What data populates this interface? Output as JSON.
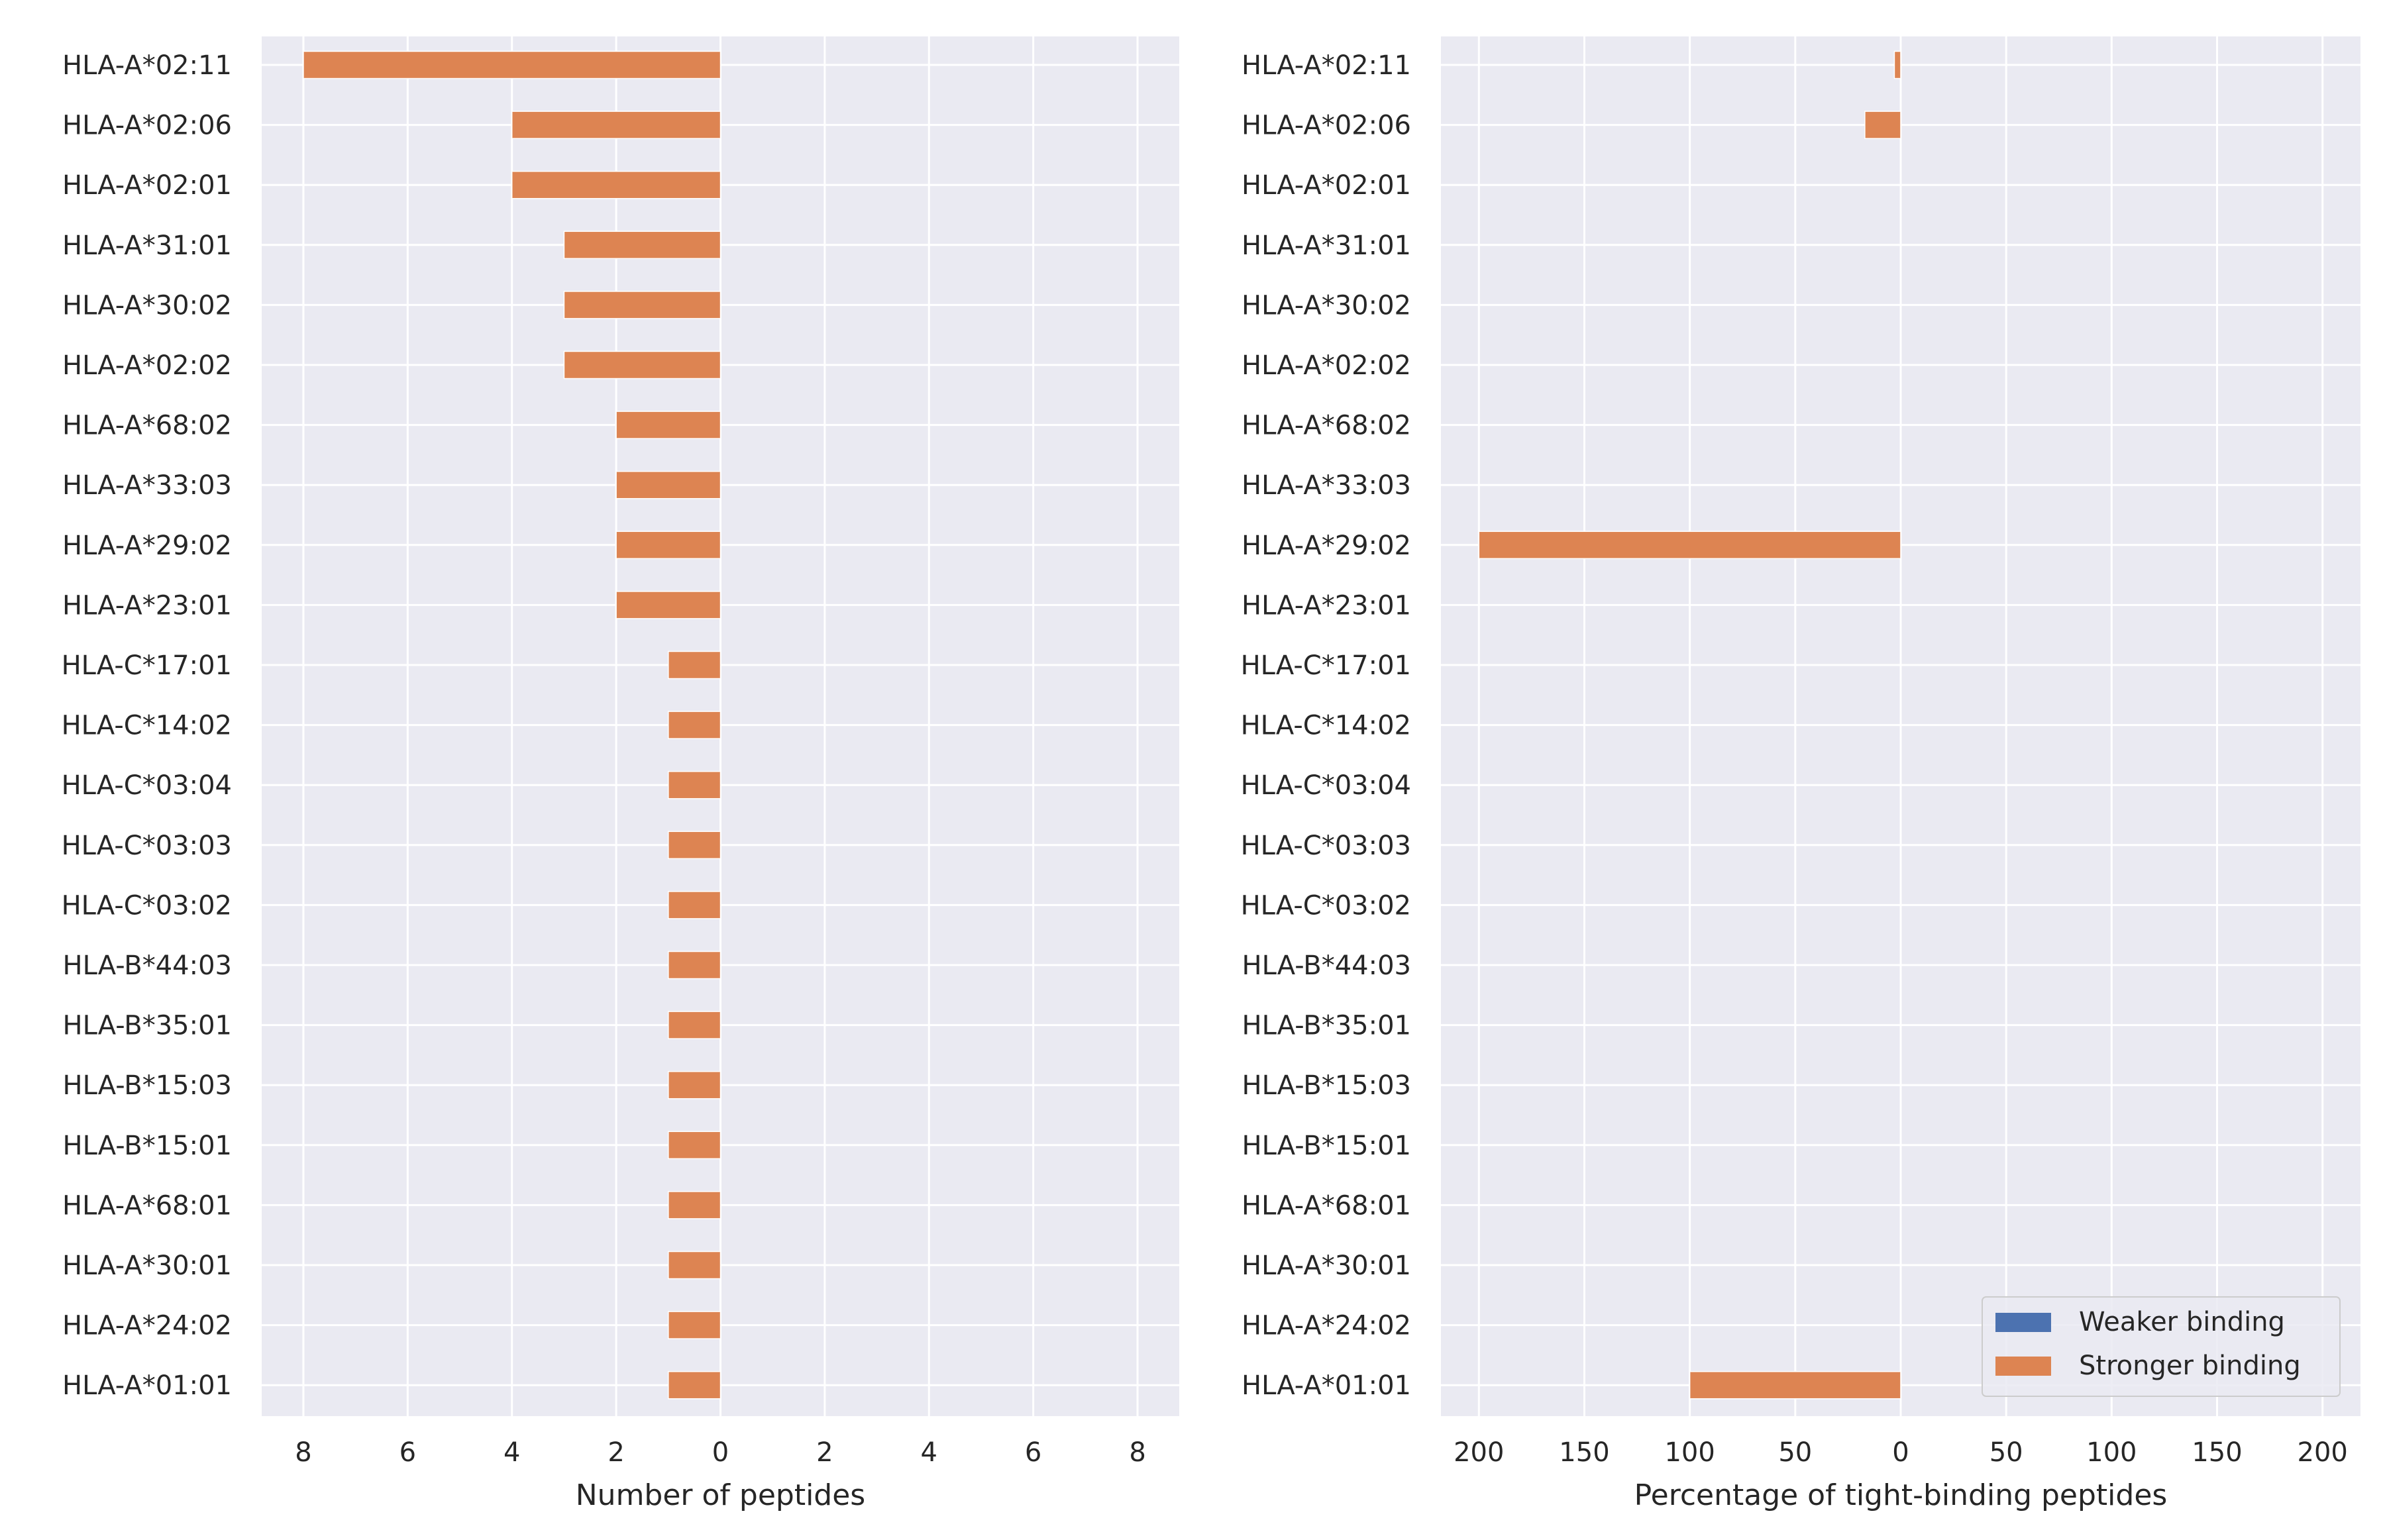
{
  "colors": {
    "weaker": "#4c72b0",
    "stronger": "#dd8452",
    "background": "#eaeaf2",
    "grid": "#ffffff",
    "text": "#262626"
  },
  "chart_data": [
    {
      "type": "bar",
      "orientation": "horizontal",
      "xlabel": "Number of peptides",
      "x_axis_direction": "diverging from 0 (left side reversed)",
      "xlim": [
        -8.8,
        8.8
      ],
      "xticks": [
        -8,
        -6,
        -4,
        -2,
        0,
        2,
        4,
        6,
        8
      ],
      "xtick_labels": [
        "8",
        "6",
        "4",
        "2",
        "0",
        "2",
        "4",
        "6",
        "8"
      ],
      "categories": [
        "HLA-A*02:11",
        "HLA-A*02:06",
        "HLA-A*02:01",
        "HLA-A*31:01",
        "HLA-A*30:02",
        "HLA-A*02:02",
        "HLA-A*68:02",
        "HLA-A*33:03",
        "HLA-A*29:02",
        "HLA-A*23:01",
        "HLA-C*17:01",
        "HLA-C*14:02",
        "HLA-C*03:04",
        "HLA-C*03:03",
        "HLA-C*03:02",
        "HLA-B*44:03",
        "HLA-B*35:01",
        "HLA-B*15:03",
        "HLA-B*15:01",
        "HLA-A*68:01",
        "HLA-A*30:01",
        "HLA-A*24:02",
        "HLA-A*01:01"
      ],
      "series": [
        {
          "name": "Weaker binding",
          "values": [
            0,
            0,
            0,
            0,
            0,
            0,
            0,
            0,
            0,
            0,
            0,
            0,
            0,
            0,
            0,
            0,
            0,
            0,
            0,
            0,
            0,
            0,
            0
          ]
        },
        {
          "name": "Stronger binding",
          "values": [
            -8,
            -4,
            -4,
            -3,
            -3,
            -3,
            -2,
            -2,
            -2,
            -2,
            -1,
            -1,
            -1,
            -1,
            -1,
            -1,
            -1,
            -1,
            -1,
            -1,
            -1,
            -1,
            -1
          ]
        }
      ],
      "grid": true
    },
    {
      "type": "bar",
      "orientation": "horizontal",
      "xlabel": "Percentage of tight-binding peptides",
      "x_axis_direction": "diverging from 0 (left side reversed)",
      "xlim": [
        -218,
        218
      ],
      "xticks": [
        -200,
        -150,
        -100,
        -50,
        0,
        50,
        100,
        150,
        200
      ],
      "xtick_labels": [
        "200",
        "150",
        "100",
        "50",
        "0",
        "50",
        "100",
        "150",
        "200"
      ],
      "categories": [
        "HLA-A*02:11",
        "HLA-A*02:06",
        "HLA-A*02:01",
        "HLA-A*31:01",
        "HLA-A*30:02",
        "HLA-A*02:02",
        "HLA-A*68:02",
        "HLA-A*33:03",
        "HLA-A*29:02",
        "HLA-A*23:01",
        "HLA-C*17:01",
        "HLA-C*14:02",
        "HLA-C*03:04",
        "HLA-C*03:03",
        "HLA-C*03:02",
        "HLA-B*44:03",
        "HLA-B*35:01",
        "HLA-B*15:03",
        "HLA-B*15:01",
        "HLA-A*68:01",
        "HLA-A*30:01",
        "HLA-A*24:02",
        "HLA-A*01:01"
      ],
      "series": [
        {
          "name": "Weaker binding",
          "values": [
            0,
            0,
            0,
            0,
            0,
            0,
            0,
            0,
            0,
            0,
            0,
            0,
            0,
            0,
            0,
            0,
            0,
            0,
            0,
            0,
            0,
            0,
            0
          ]
        },
        {
          "name": "Stronger binding",
          "values": [
            -3,
            -17,
            0,
            0,
            0,
            0,
            0,
            0,
            -200,
            0,
            0,
            0,
            0,
            0,
            0,
            0,
            0,
            0,
            0,
            0,
            0,
            0,
            -100
          ]
        }
      ],
      "grid": true,
      "legend": {
        "placement": "lower-right",
        "entries": [
          "Weaker binding",
          "Stronger binding"
        ]
      }
    }
  ]
}
